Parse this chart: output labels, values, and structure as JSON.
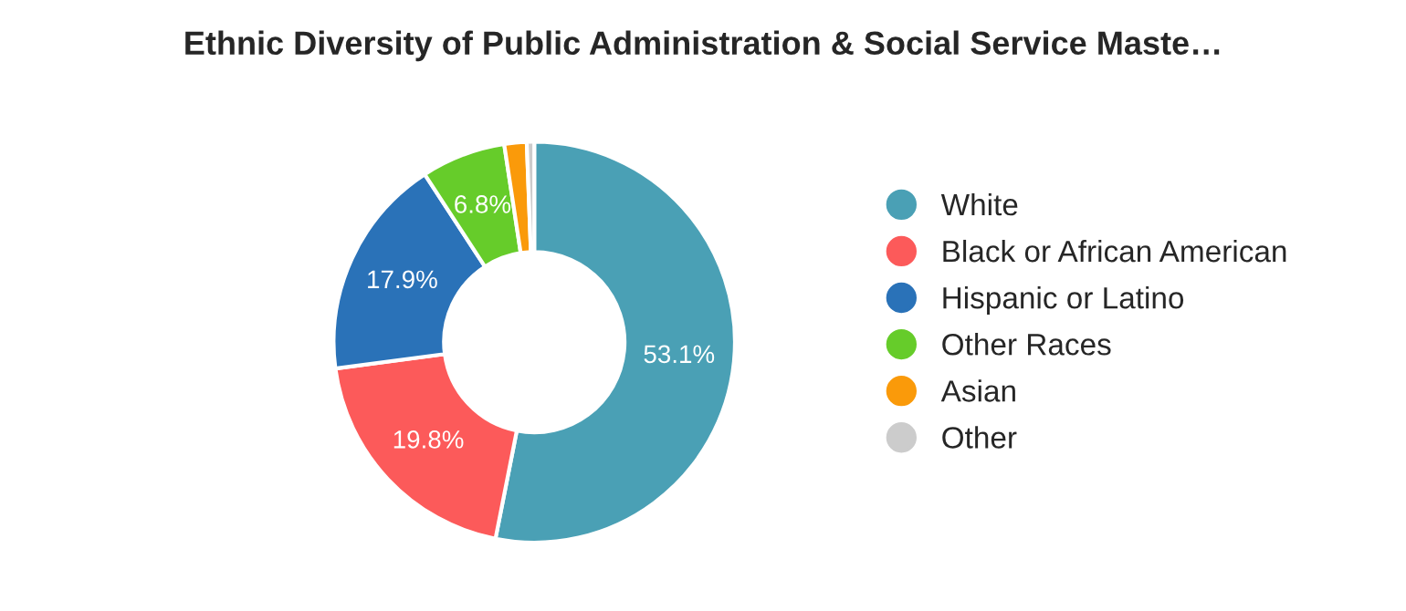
{
  "chart_data": {
    "type": "donut",
    "title": "Ethnic Diversity of Public Administration & Social Service Maste…",
    "categories": [
      "White",
      "Black or African American",
      "Hispanic or Latino",
      "Other Races",
      "Asian",
      "Other"
    ],
    "values": [
      53.1,
      19.8,
      17.9,
      6.8,
      1.8,
      0.6
    ],
    "value_labels": [
      "53.1%",
      "19.8%",
      "17.9%",
      "6.8%",
      null,
      null
    ],
    "colors": [
      "#4aa0b5",
      "#fc5a5a",
      "#2a72b8",
      "#66cc2a",
      "#fa9a0a",
      "#cccccc"
    ],
    "legend": "right"
  }
}
